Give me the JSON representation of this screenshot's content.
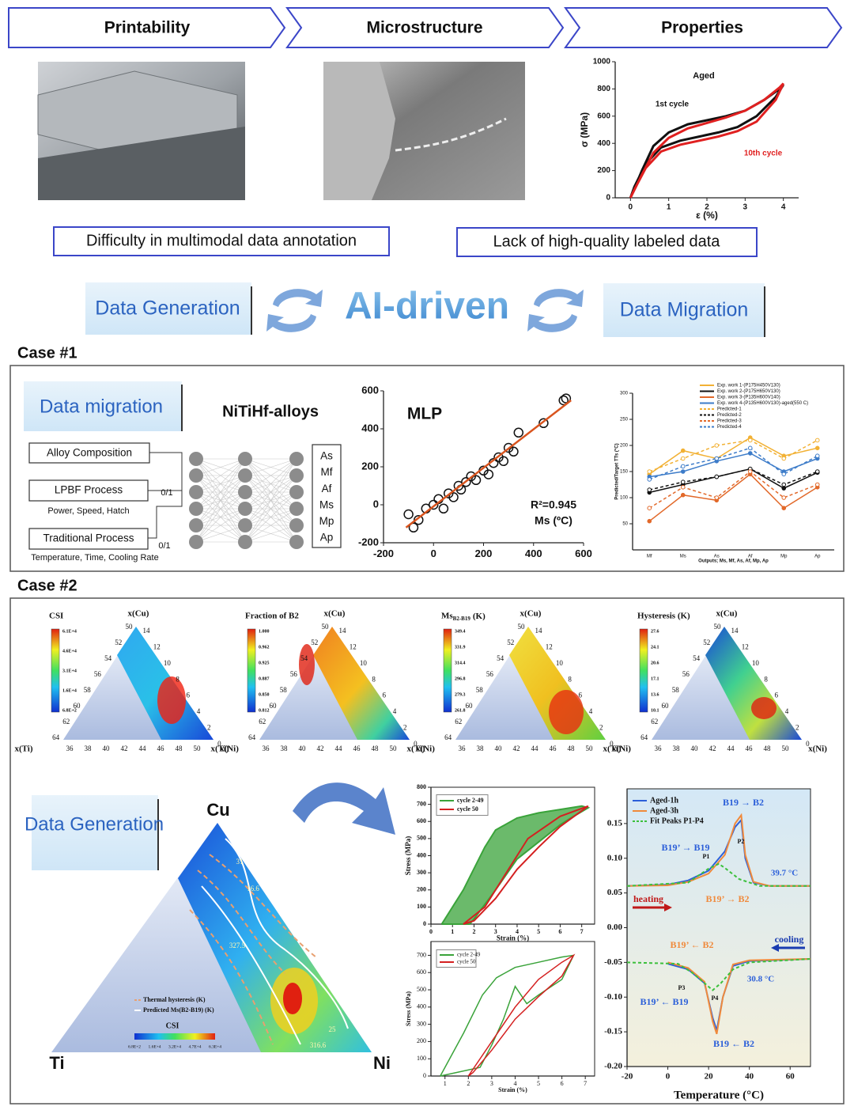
{
  "header": {
    "steps": [
      "Printability",
      "Microstructure",
      "Properties"
    ]
  },
  "challenges": [
    "Difficulty in multimodal data annotation",
    "Lack of high-quality labeled data"
  ],
  "ai": {
    "left": "Data Generation",
    "center": "AI-driven",
    "right": "Data Migration"
  },
  "case1": {
    "title": "Case #1",
    "label": "Data migration",
    "network_title": "NiTiHf-alloys",
    "inputs": [
      {
        "name": "Alloy Composition"
      },
      {
        "name": "LPBF Process",
        "note": "Power, Speed, Hatch",
        "flag": "0/1"
      },
      {
        "name": "Traditional Process",
        "note": "Temperature, Time, Cooling Rate",
        "flag": "0/1"
      }
    ],
    "outputs": [
      "As",
      "Mf",
      "Af",
      "Ms",
      "Mp",
      "Ap"
    ]
  },
  "case2": {
    "title": "Case #2",
    "label": "Data Generation",
    "ternary_axes": {
      "top": "x(Cu)",
      "left": "x(Ti)",
      "right": "x(Ni)",
      "left_ticks": [
        "50",
        "52",
        "54",
        "56",
        "58",
        "60",
        "62",
        "64"
      ],
      "right_ticks": [
        "14",
        "12",
        "10",
        "8",
        "6",
        "4",
        "2",
        "0"
      ],
      "bottom_ticks": [
        "36",
        "38",
        "40",
        "42",
        "44",
        "46",
        "48",
        "50"
      ]
    },
    "ternaries": [
      {
        "title": "CSI",
        "colorbar": [
          "6.1E+4",
          "4.6E+4",
          "3.1E+4",
          "1.6E+4",
          "6.8E+2"
        ]
      },
      {
        "title": "Fraction of B2",
        "colorbar": [
          "1.000",
          "0.962",
          "0.925",
          "0.887",
          "0.850",
          "0.812"
        ]
      },
      {
        "title": "Ms",
        "title_sub": "B2-B19",
        "title_unit": "(K)",
        "colorbar": [
          "349.4",
          "331.9",
          "314.4",
          "296.8",
          "279.3",
          "261.8"
        ]
      },
      {
        "title": "Hysteresis (K)",
        "colorbar": [
          "27.6",
          "24.1",
          "20.6",
          "17.1",
          "13.6",
          "10.1"
        ]
      }
    ],
    "big_ternary": {
      "corners": [
        "Cu",
        "Ti",
        "Ni"
      ],
      "legend": [
        "Thermal hysteresis (K)",
        "Predicted Ms(B2-B19) (K)"
      ],
      "colorbar_title": "CSI",
      "colorbar": [
        "6.8E+2",
        "1.6E+4",
        "3.2E+4",
        "4.7E+4",
        "6.3E+4"
      ],
      "contour_labels": [
        "31",
        "16.6",
        "327.5",
        "25",
        "316.6"
      ]
    }
  },
  "chart_data": [
    {
      "type": "line",
      "title": "Aged",
      "x_label": "ε (%)",
      "y_label": "σ (MPa)",
      "xlim": [
        -0.4,
        4.4
      ],
      "xticks": [
        0,
        1,
        2,
        3,
        4
      ],
      "ylim": [
        0,
        1000
      ],
      "yticks": [
        0,
        200,
        400,
        600,
        800,
        1000
      ],
      "annotations": [
        "1st cycle",
        "10th cycle"
      ],
      "series": [
        {
          "color": "#111111",
          "x": [
            0,
            0.3,
            0.6,
            1,
            1.5,
            2,
            2.5,
            3,
            3.5,
            3.9,
            4,
            3.8,
            3.3,
            2.8,
            2.3,
            1.8,
            1.3,
            0.8,
            0.4,
            0.1,
            0
          ],
          "values": [
            0,
            200,
            380,
            480,
            540,
            570,
            600,
            640,
            720,
            800,
            830,
            740,
            600,
            520,
            480,
            450,
            420,
            370,
            250,
            80,
            0
          ]
        },
        {
          "color": "#e02020",
          "x": [
            0,
            0.3,
            0.6,
            1,
            1.5,
            2,
            2.5,
            3,
            3.5,
            3.9,
            4,
            3.8,
            3.3,
            2.8,
            2.3,
            1.8,
            1.3,
            0.8,
            0.4,
            0.1,
            0
          ],
          "values": [
            0,
            170,
            330,
            440,
            510,
            550,
            590,
            640,
            720,
            810,
            840,
            720,
            560,
            490,
            450,
            420,
            390,
            340,
            220,
            60,
            0
          ]
        }
      ]
    },
    {
      "type": "scatter",
      "title": "MLP",
      "annotations": [
        "R²=0.945",
        "Ms (ºC)"
      ],
      "xlim": [
        -200,
        600
      ],
      "xticks": [
        -200,
        0,
        200,
        400,
        600
      ],
      "ylim": [
        -200,
        600
      ],
      "yticks": [
        -200,
        0,
        200,
        400,
        600
      ],
      "series": [
        {
          "color": "#111111",
          "x": [
            -100,
            -80,
            -60,
            -30,
            0,
            20,
            40,
            60,
            80,
            100,
            110,
            130,
            150,
            170,
            200,
            220,
            240,
            260,
            280,
            300,
            320,
            340,
            440,
            530,
            520
          ],
          "values": [
            -50,
            -120,
            -80,
            -20,
            0,
            30,
            -20,
            60,
            40,
            100,
            80,
            120,
            150,
            130,
            180,
            160,
            220,
            250,
            230,
            300,
            280,
            380,
            430,
            560,
            550
          ]
        }
      ],
      "fit": {
        "color": "#d9541e",
        "x": [
          -110,
          550
        ],
        "values": [
          -120,
          550
        ]
      }
    },
    {
      "type": "line",
      "x_label": "Outputs; Ms, Mf, As, Af, Mp, Ap",
      "y_label": "Predicted/Target TTs (°C)",
      "categories": [
        "Mf",
        "Ms",
        "As",
        "Af",
        "Mp",
        "Ap"
      ],
      "ylim": [
        0,
        300
      ],
      "yticks": [
        50,
        100,
        150,
        200,
        250,
        300
      ],
      "series": [
        {
          "name": "Exp. work 1-(P175H450V130)",
          "color": "#f2b134",
          "values": [
            145,
            190,
            175,
            215,
            180,
            195
          ]
        },
        {
          "name": "Exp. work 2-(P175H650V130)",
          "color": "#111111",
          "values": [
            110,
            125,
            140,
            155,
            118,
            148
          ]
        },
        {
          "name": "Exp. work 3-(P135H600V140)",
          "color": "#e2692a",
          "values": [
            55,
            105,
            95,
            145,
            80,
            120
          ]
        },
        {
          "name": "Exp. work 4-(P135H600V130)-aged(550 C)",
          "color": "#3d7cc9",
          "values": [
            140,
            150,
            170,
            185,
            150,
            175
          ]
        },
        {
          "name": "Predicted-1",
          "color": "#f2b134",
          "dashed": true,
          "values": [
            150,
            175,
            200,
            210,
            175,
            210
          ]
        },
        {
          "name": "Predicted-2",
          "color": "#111111",
          "dashed": true,
          "values": [
            115,
            130,
            140,
            155,
            125,
            150
          ]
        },
        {
          "name": "Predicted-3",
          "color": "#e2692a",
          "dashed": true,
          "values": [
            80,
            120,
            100,
            150,
            100,
            125
          ]
        },
        {
          "name": "Predicted-4",
          "color": "#3d7cc9",
          "dashed": true,
          "values": [
            135,
            160,
            175,
            195,
            145,
            180
          ]
        }
      ]
    },
    {
      "type": "line",
      "x_label": "Strain (%)",
      "y_label": "Stress (MPa)",
      "xlim": [
        0,
        7.6
      ],
      "xticks": [
        0,
        1,
        2,
        3,
        4,
        5,
        6,
        7
      ],
      "ylim": [
        0,
        800
      ],
      "yticks": [
        0,
        100,
        200,
        300,
        400,
        500,
        600,
        700,
        800
      ],
      "series": [
        {
          "name": "cycle 2-49",
          "color": "#3aa33a",
          "x": [
            0.5,
            1.5,
            2.5,
            3,
            4,
            5,
            6,
            7,
            7.3,
            6.5,
            6,
            5,
            4,
            3,
            2,
            1.8,
            0.5
          ],
          "values": [
            0,
            200,
            450,
            550,
            620,
            650,
            670,
            690,
            680,
            620,
            580,
            480,
            380,
            200,
            30,
            0,
            0
          ]
        },
        {
          "name": "cycle 50",
          "color": "#d42020",
          "x": [
            1.5,
            2.5,
            3.5,
            4.5,
            6,
            7.3,
            6,
            5,
            4,
            3,
            2,
            1.5
          ],
          "values": [
            0,
            100,
            300,
            500,
            630,
            690,
            570,
            450,
            320,
            150,
            20,
            0
          ]
        }
      ]
    },
    {
      "type": "line",
      "x_label": "Strain (%)",
      "y_label": "Stress (MPa)",
      "xlim": [
        0.4,
        7.4
      ],
      "xticks": [
        1,
        2,
        3,
        4,
        5,
        6,
        7
      ],
      "ylim": [
        0,
        780
      ],
      "yticks": [
        0,
        100,
        200,
        300,
        400,
        500,
        600,
        700
      ],
      "series": [
        {
          "name": "cycle 2-49",
          "color": "#3aa33a",
          "x": [
            0.8,
            1.8,
            2.6,
            3.2,
            4,
            5,
            6,
            6.5,
            6,
            5,
            4.5,
            4,
            3.5,
            3,
            2.5,
            0.8
          ],
          "values": [
            0,
            250,
            470,
            570,
            630,
            660,
            690,
            700,
            560,
            470,
            420,
            520,
            330,
            180,
            50,
            0
          ]
        },
        {
          "name": "cycle 50",
          "color": "#d42020",
          "x": [
            2,
            3,
            4,
            5,
            6,
            6.5,
            6,
            5,
            4,
            3,
            2.2,
            2
          ],
          "values": [
            0,
            200,
            400,
            560,
            660,
            700,
            580,
            460,
            330,
            150,
            20,
            0
          ]
        }
      ]
    },
    {
      "type": "line",
      "x_label": "Temperature (°C)",
      "legend": "upper left",
      "xlim": [
        -20,
        70
      ],
      "xticks": [
        -20,
        0,
        20,
        40,
        60
      ],
      "ylim": [
        -0.2,
        0.2
      ],
      "yticks": [
        {
          "value": -0.2,
          "label": "-0.20"
        },
        -0.15,
        {
          "value": -0.1,
          "label": "-0.10"
        },
        -0.05,
        {
          "value": 0,
          "label": "0.00"
        },
        0.05,
        {
          "value": 0.1,
          "label": "0.10"
        },
        0.15
      ],
      "annotations": [
        "B19 → B2",
        "B19’ → B19",
        "P1",
        "P2",
        "39.7 °C",
        "heating",
        "B19’ → B2",
        "B19’ ← B2",
        "cooling",
        "30.8 °C",
        "P3",
        "P4",
        "B19’ ← B19",
        "B19 ← B2"
      ],
      "series": [
        {
          "name": "Aged-1h",
          "color": "#2b5fd9",
          "x": [
            -20,
            0,
            10,
            20,
            28,
            33,
            36,
            38,
            42,
            50,
            70,
            -20,
            0,
            10,
            18,
            22,
            24,
            27,
            32,
            40,
            70
          ],
          "values": [
            0.06,
            0.062,
            0.068,
            0.082,
            0.11,
            0.145,
            0.155,
            0.1,
            0.065,
            0.06,
            0.06,
            null,
            -0.052,
            -0.06,
            -0.08,
            -0.13,
            -0.148,
            -0.1,
            -0.055,
            -0.048,
            -0.045
          ]
        },
        {
          "name": "Aged-3h",
          "color": "#f08a3c",
          "x": [
            -20,
            0,
            10,
            20,
            28,
            33,
            36,
            38,
            42,
            50,
            70,
            -20,
            0,
            10,
            18,
            22,
            24,
            27,
            32,
            40,
            70
          ],
          "values": [
            0.06,
            0.061,
            0.066,
            0.078,
            0.105,
            0.15,
            0.162,
            0.105,
            0.066,
            0.06,
            0.06,
            null,
            -0.05,
            -0.058,
            -0.078,
            -0.135,
            -0.153,
            -0.1,
            -0.053,
            -0.047,
            -0.045
          ]
        },
        {
          "name": "Fit Peaks P1-P4",
          "color": "#3cc03c",
          "dashed": true,
          "x": [
            -20,
            10,
            20,
            25,
            28,
            35,
            45,
            70,
            25,
            -20,
            5,
            12,
            18,
            22,
            26,
            32,
            40,
            70
          ],
          "values": [
            0.06,
            0.065,
            0.085,
            0.092,
            0.086,
            0.07,
            0.06,
            0.06,
            null,
            -0.05,
            -0.052,
            -0.065,
            -0.08,
            -0.09,
            -0.08,
            -0.06,
            -0.05,
            -0.045
          ]
        }
      ]
    }
  ]
}
